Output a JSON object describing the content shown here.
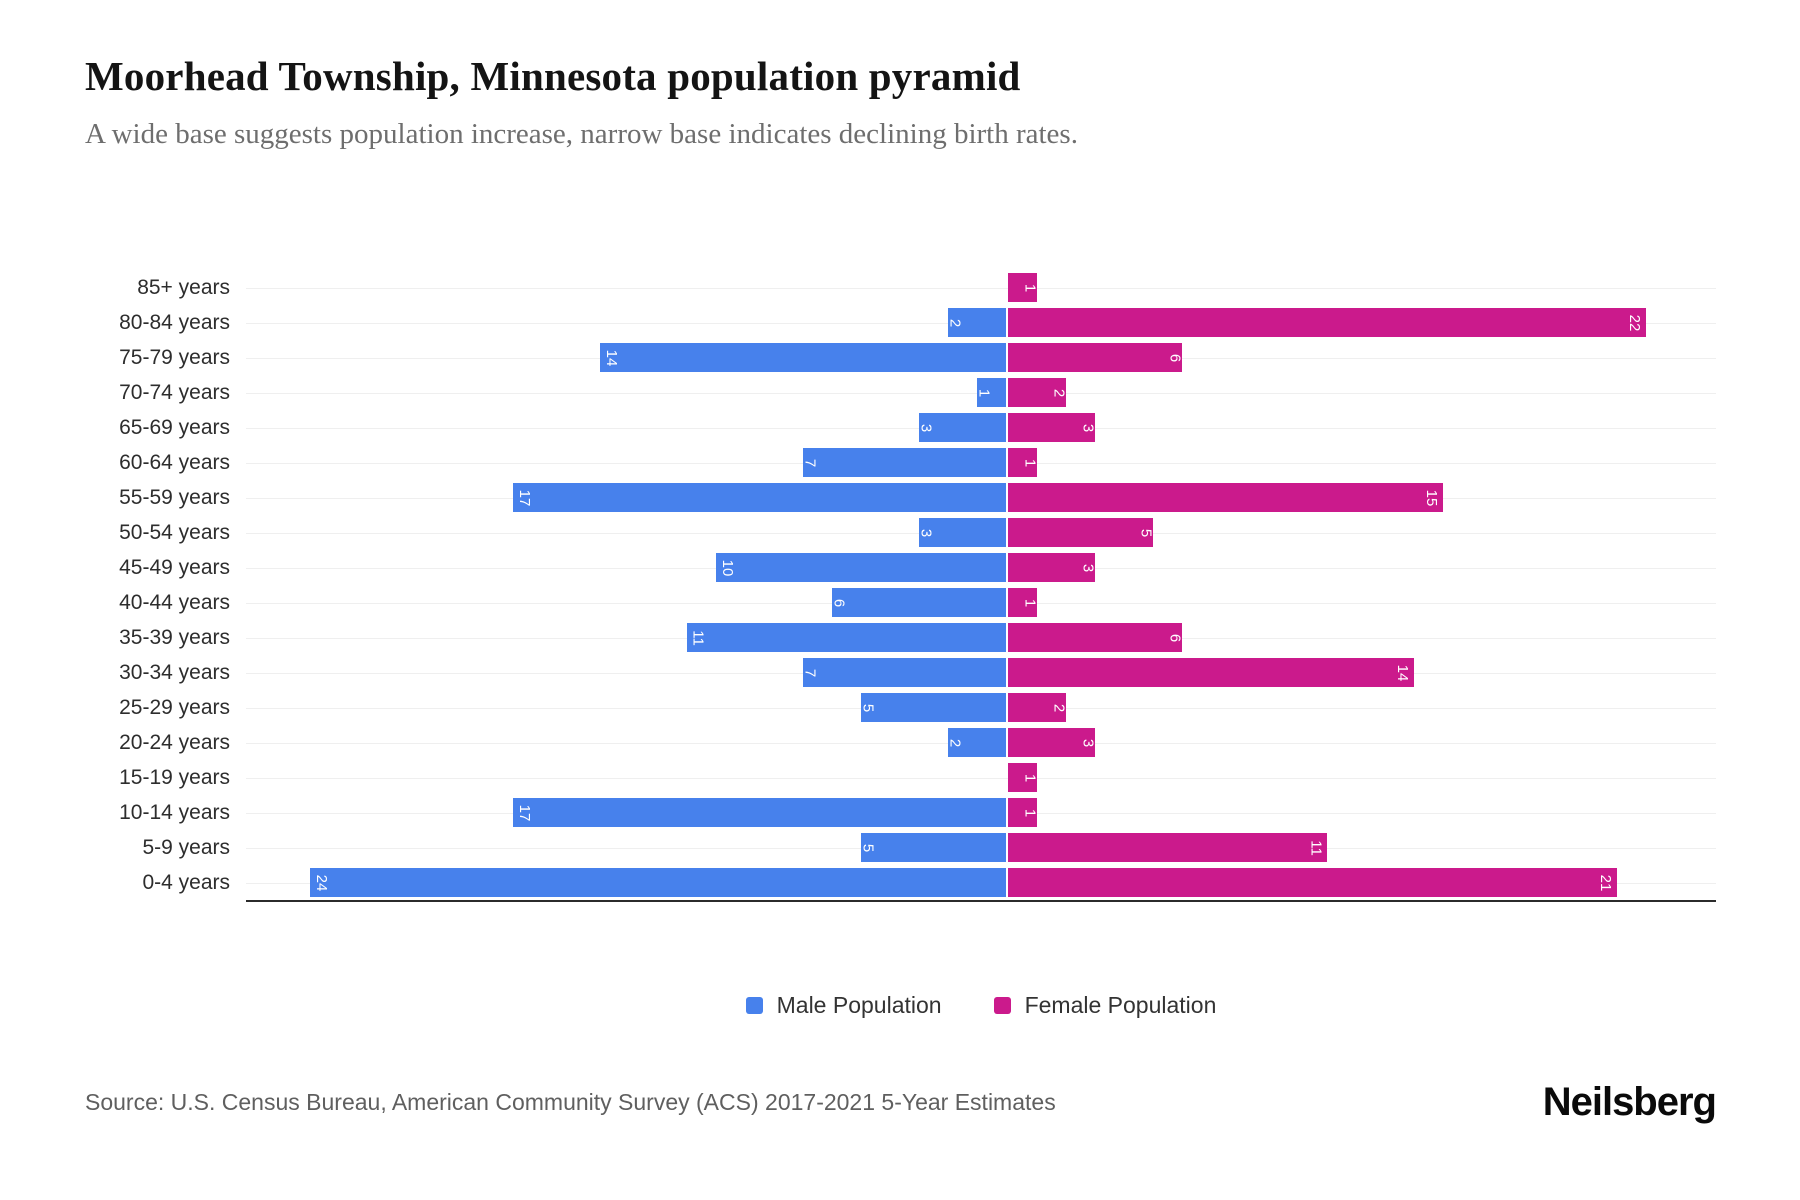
{
  "title": "Moorhead Township, Minnesota population pyramid",
  "subtitle": "A wide base suggests population increase, narrow base indicates declining birth rates.",
  "chart_data": {
    "type": "bar",
    "variant": "population-pyramid",
    "title": "Moorhead Township, Minnesota population pyramid",
    "subtitle": "A wide base suggests population increase, narrow base indicates declining birth rates.",
    "categories": [
      "85+ years",
      "80-84 years",
      "75-79 years",
      "70-74 years",
      "65-69 years",
      "60-64 years",
      "55-59 years",
      "50-54 years",
      "45-49 years",
      "40-44 years",
      "35-39 years",
      "30-34 years",
      "25-29 years",
      "20-24 years",
      "15-19 years",
      "10-14 years",
      "5-9 years",
      "0-4 years"
    ],
    "series": [
      {
        "name": "Male Population",
        "side": "left",
        "color": "#4781EC",
        "values": [
          0,
          2,
          14,
          1,
          3,
          7,
          17,
          3,
          10,
          6,
          11,
          7,
          5,
          2,
          0,
          17,
          5,
          24
        ]
      },
      {
        "name": "Female Population",
        "side": "right",
        "color": "#CB1A8C",
        "values": [
          1,
          22,
          6,
          2,
          3,
          1,
          15,
          5,
          3,
          1,
          6,
          14,
          2,
          3,
          1,
          1,
          11,
          21
        ]
      }
    ],
    "bar_labels": "value inside outer end of bar, rotated 90deg, white",
    "x_axis": {
      "tick_labels_visible": false,
      "left_max": 26,
      "right_max": 24.5
    },
    "grid": "light horizontal lines per age row",
    "legend_position": "bottom-center"
  },
  "legend": [
    {
      "label": "Male Population",
      "color": "#4781EC"
    },
    {
      "label": "Female Population",
      "color": "#CB1A8C"
    }
  ],
  "footer": {
    "source": "Source: U.S. Census Bureau, American Community Survey (ACS) 2017-2021 5-Year Estimates",
    "brand": "Neilsberg"
  }
}
